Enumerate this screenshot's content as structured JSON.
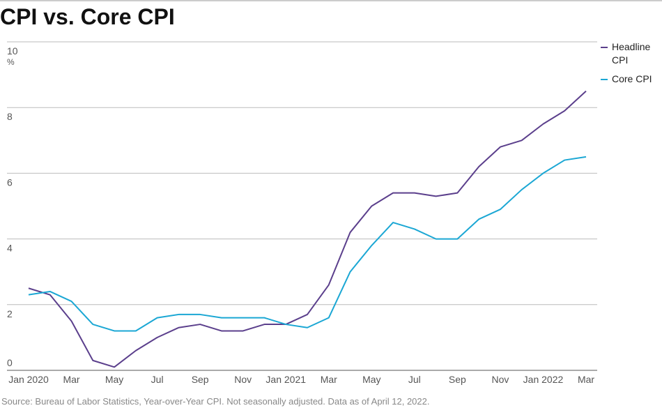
{
  "chart_data": {
    "type": "line",
    "title": "CPI vs. Core CPI",
    "ylabel": "%",
    "source": "Source: Bureau of Labor Statistics, Year-over-Year CPI. Not seasonally adjusted. Data as of April 12, 2022.",
    "categories": [
      "Jan 2020",
      null,
      "Mar",
      null,
      "May",
      null,
      "Jul",
      null,
      "Sep",
      null,
      "Nov",
      null,
      "Jan 2021",
      null,
      "Mar",
      null,
      "May",
      null,
      "Jul",
      null,
      "Sep",
      null,
      "Nov",
      null,
      "Jan 2022",
      null,
      "Mar"
    ],
    "series": [
      {
        "name": "Headline CPI",
        "color": "#5b3f8c",
        "values": [
          2.5,
          2.3,
          1.5,
          0.3,
          0.1,
          0.6,
          1.0,
          1.3,
          1.4,
          1.2,
          1.2,
          1.4,
          1.4,
          1.7,
          2.6,
          4.2,
          5.0,
          5.4,
          5.4,
          5.3,
          5.4,
          6.2,
          6.8,
          7.0,
          7.5,
          7.9,
          8.5
        ]
      },
      {
        "name": "Core CPI",
        "color": "#1ba7d4",
        "values": [
          2.3,
          2.4,
          2.1,
          1.4,
          1.2,
          1.2,
          1.6,
          1.7,
          1.7,
          1.6,
          1.6,
          1.6,
          1.4,
          1.3,
          1.6,
          3.0,
          3.8,
          4.5,
          4.3,
          4.0,
          4.0,
          4.6,
          4.9,
          5.5,
          6.0,
          6.4,
          6.5
        ]
      }
    ],
    "ylim": [
      0,
      10
    ],
    "yticks": [
      0,
      2,
      4,
      6,
      8,
      10
    ],
    "grid": true,
    "legend": "right"
  }
}
